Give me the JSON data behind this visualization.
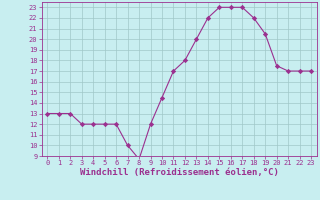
{
  "x": [
    0,
    1,
    2,
    3,
    4,
    5,
    6,
    7,
    8,
    9,
    10,
    11,
    12,
    13,
    14,
    15,
    16,
    17,
    18,
    19,
    20,
    21,
    22,
    23
  ],
  "y": [
    13,
    13,
    13,
    12,
    12,
    12,
    12,
    10,
    8.7,
    12,
    14.5,
    17,
    18,
    20,
    22,
    23,
    23,
    23,
    22,
    20.5,
    17.5,
    17,
    17,
    17
  ],
  "line_color": "#9B308F",
  "marker": "D",
  "marker_size": 2.2,
  "bg_color": "#C8EEF0",
  "grid_color": "#a0c8c8",
  "xlabel": "Windchill (Refroidissement éolien,°C)",
  "xlabel_color": "#9B308F",
  "xlim": [
    -0.5,
    23.5
  ],
  "ylim": [
    9,
    23.5
  ],
  "yticks": [
    9,
    10,
    11,
    12,
    13,
    14,
    15,
    16,
    17,
    18,
    19,
    20,
    21,
    22,
    23
  ],
  "xticks": [
    0,
    1,
    2,
    3,
    4,
    5,
    6,
    7,
    8,
    9,
    10,
    11,
    12,
    13,
    14,
    15,
    16,
    17,
    18,
    19,
    20,
    21,
    22,
    23
  ],
  "tick_color": "#9B308F",
  "tick_fontsize": 5.0,
  "xlabel_fontsize": 6.5,
  "xlabel_fontweight": "bold"
}
